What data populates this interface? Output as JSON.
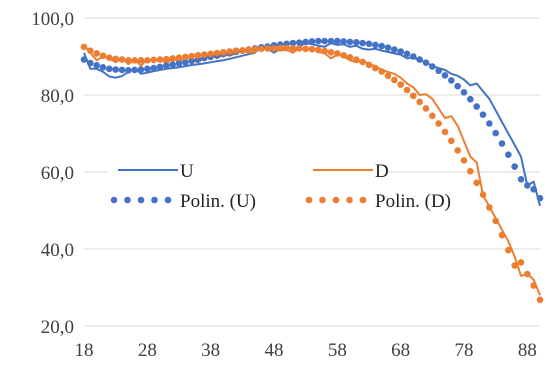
{
  "chart_data": {
    "type": "line",
    "title": "",
    "xlabel": "",
    "ylabel": "",
    "xlim": [
      18,
      90
    ],
    "ylim": [
      20,
      100
    ],
    "x_ticks": [
      18,
      28,
      38,
      48,
      58,
      68,
      78,
      88
    ],
    "x_tick_labels": [
      "18",
      "28",
      "38",
      "48",
      "58",
      "68",
      "78",
      "88"
    ],
    "y_ticks": [
      20,
      40,
      60,
      80,
      100
    ],
    "y_tick_labels": [
      "20,0",
      "40,0",
      "60,0",
      "80,0",
      "100,0"
    ],
    "grid": "horizontal",
    "legend_position": "inside-center",
    "series": [
      {
        "name": "U",
        "style": "solid",
        "color": "#4472C4",
        "x": [
          18,
          19,
          20,
          21,
          22,
          23,
          24,
          25,
          26,
          27,
          28,
          29,
          30,
          31,
          32,
          33,
          34,
          35,
          36,
          37,
          38,
          39,
          40,
          41,
          42,
          43,
          44,
          45,
          46,
          47,
          48,
          49,
          50,
          51,
          52,
          53,
          54,
          55,
          56,
          57,
          58,
          59,
          60,
          61,
          62,
          63,
          64,
          65,
          66,
          67,
          68,
          69,
          70,
          71,
          72,
          73,
          74,
          75,
          76,
          77,
          78,
          79,
          80,
          81,
          82,
          83,
          84,
          85,
          86,
          87,
          88,
          89,
          90
        ],
        "values": [
          91,
          86.8,
          86.8,
          86,
          84.8,
          84.5,
          84.9,
          86,
          87,
          85.5,
          85.8,
          86.2,
          86.5,
          86.8,
          87,
          87.2,
          87.5,
          87.8,
          88,
          88.2,
          88.5,
          88.8,
          89,
          89.4,
          89.8,
          90.2,
          90.6,
          91,
          92.5,
          92,
          91,
          92,
          92.5,
          92,
          92.6,
          93.5,
          93.2,
          92.8,
          92.5,
          93.5,
          93,
          93.2,
          92.5,
          92.8,
          92,
          91.8,
          92,
          91.5,
          91.2,
          90.8,
          90.5,
          89.5,
          89.8,
          89,
          88.5,
          87.5,
          87,
          86.5,
          85.5,
          85,
          84,
          82.5,
          83,
          81,
          79,
          76,
          73,
          70,
          67,
          64,
          56.5,
          57.5,
          51.2
        ]
      },
      {
        "name": "D",
        "style": "solid",
        "color": "#ED7D31",
        "x": [
          18,
          19,
          20,
          21,
          22,
          23,
          24,
          25,
          26,
          27,
          28,
          29,
          30,
          31,
          32,
          33,
          34,
          35,
          36,
          37,
          38,
          39,
          40,
          41,
          42,
          43,
          44,
          45,
          46,
          47,
          48,
          49,
          50,
          51,
          52,
          53,
          54,
          55,
          56,
          57,
          58,
          59,
          60,
          61,
          62,
          63,
          64,
          65,
          66,
          67,
          68,
          69,
          70,
          71,
          72,
          73,
          74,
          75,
          76,
          77,
          78,
          79,
          80,
          81,
          82,
          83,
          84,
          85,
          86,
          87,
          88,
          89,
          90
        ],
        "values": [
          93,
          91,
          89,
          90,
          89.5,
          88.5,
          89.8,
          88,
          89.2,
          87.5,
          89.5,
          88.5,
          89.8,
          88,
          89.8,
          88.5,
          90,
          89.2,
          88.5,
          89.8,
          90.5,
          89.5,
          90.5,
          90.2,
          90.8,
          91.5,
          91,
          91.2,
          92.5,
          91.5,
          92,
          91.5,
          91.8,
          91,
          92.2,
          91.5,
          92.5,
          91.2,
          90.8,
          89.5,
          90.5,
          90,
          89,
          88.5,
          89,
          88,
          87.5,
          86.5,
          86,
          85.5,
          84.5,
          83,
          82,
          80,
          80.2,
          79,
          76.5,
          74,
          74.5,
          72,
          68,
          64,
          62.5,
          54,
          51,
          48,
          45,
          42,
          38,
          33,
          33.5,
          32,
          28
        ]
      },
      {
        "name": "Polin. (U)",
        "style": "dotted",
        "color": "#4472C4",
        "x": [
          18,
          19,
          20,
          21,
          22,
          23,
          24,
          25,
          26,
          27,
          28,
          29,
          30,
          31,
          32,
          33,
          34,
          35,
          36,
          37,
          38,
          39,
          40,
          41,
          42,
          43,
          44,
          45,
          46,
          47,
          48,
          49,
          50,
          51,
          52,
          53,
          54,
          55,
          56,
          57,
          58,
          59,
          60,
          61,
          62,
          63,
          64,
          65,
          66,
          67,
          68,
          69,
          70,
          71,
          72,
          73,
          74,
          75,
          76,
          77,
          78,
          79,
          80,
          81,
          82,
          83,
          84,
          85,
          86,
          87,
          88,
          89,
          90
        ],
        "values": [
          89.2,
          88.3,
          87.7,
          87.2,
          86.8,
          86.6,
          86.5,
          86.4,
          86.5,
          86.6,
          86.8,
          87,
          87.3,
          87.6,
          87.9,
          88.2,
          88.5,
          88.9,
          89.2,
          89.6,
          89.9,
          90.3,
          90.6,
          90.9,
          91.2,
          91.5,
          91.8,
          92.1,
          92.4,
          92.6,
          92.9,
          93.1,
          93.3,
          93.5,
          93.6,
          93.8,
          93.9,
          94,
          94,
          94,
          94,
          93.9,
          93.8,
          93.7,
          93.5,
          93.3,
          93,
          92.7,
          92.3,
          91.8,
          91.3,
          90.7,
          90,
          89.2,
          88.4,
          87.4,
          86.3,
          85.1,
          83.8,
          82.3,
          80.7,
          78.9,
          77,
          74.9,
          72.6,
          70.1,
          67.4,
          64.5,
          61.4,
          58.1,
          56.5,
          55.5,
          53.2
        ]
      },
      {
        "name": "Polin. (D)",
        "style": "dotted",
        "color": "#ED7D31",
        "x": [
          18,
          19,
          20,
          21,
          22,
          23,
          24,
          25,
          26,
          27,
          28,
          29,
          30,
          31,
          32,
          33,
          34,
          35,
          36,
          37,
          38,
          39,
          40,
          41,
          42,
          43,
          44,
          45,
          46,
          47,
          48,
          49,
          50,
          51,
          52,
          53,
          54,
          55,
          56,
          57,
          58,
          59,
          60,
          61,
          62,
          63,
          64,
          65,
          66,
          67,
          68,
          69,
          70,
          71,
          72,
          73,
          74,
          75,
          76,
          77,
          78,
          79,
          80,
          81,
          82,
          83,
          84,
          85,
          86,
          87,
          88,
          89,
          90
        ],
        "values": [
          92.5,
          91.5,
          90.8,
          90.2,
          89.7,
          89.4,
          89.2,
          89,
          89,
          89,
          89,
          89.1,
          89.2,
          89.3,
          89.5,
          89.7,
          89.9,
          90.1,
          90.3,
          90.5,
          90.7,
          90.9,
          91.1,
          91.3,
          91.5,
          91.6,
          91.8,
          91.9,
          92,
          92.1,
          92.1,
          92.2,
          92.2,
          92.1,
          92.1,
          92,
          91.9,
          91.7,
          91.4,
          91.1,
          90.8,
          90.3,
          89.8,
          89.2,
          88.6,
          87.8,
          87,
          86.1,
          85,
          83.9,
          82.7,
          81.3,
          79.8,
          78.2,
          76.5,
          74.6,
          72.6,
          70.4,
          68.1,
          65.6,
          63,
          60.2,
          57.2,
          54.1,
          50.8,
          47.3,
          43.6,
          39.7,
          35.7,
          36.5,
          33.5,
          30.5,
          26.8
        ]
      }
    ]
  }
}
